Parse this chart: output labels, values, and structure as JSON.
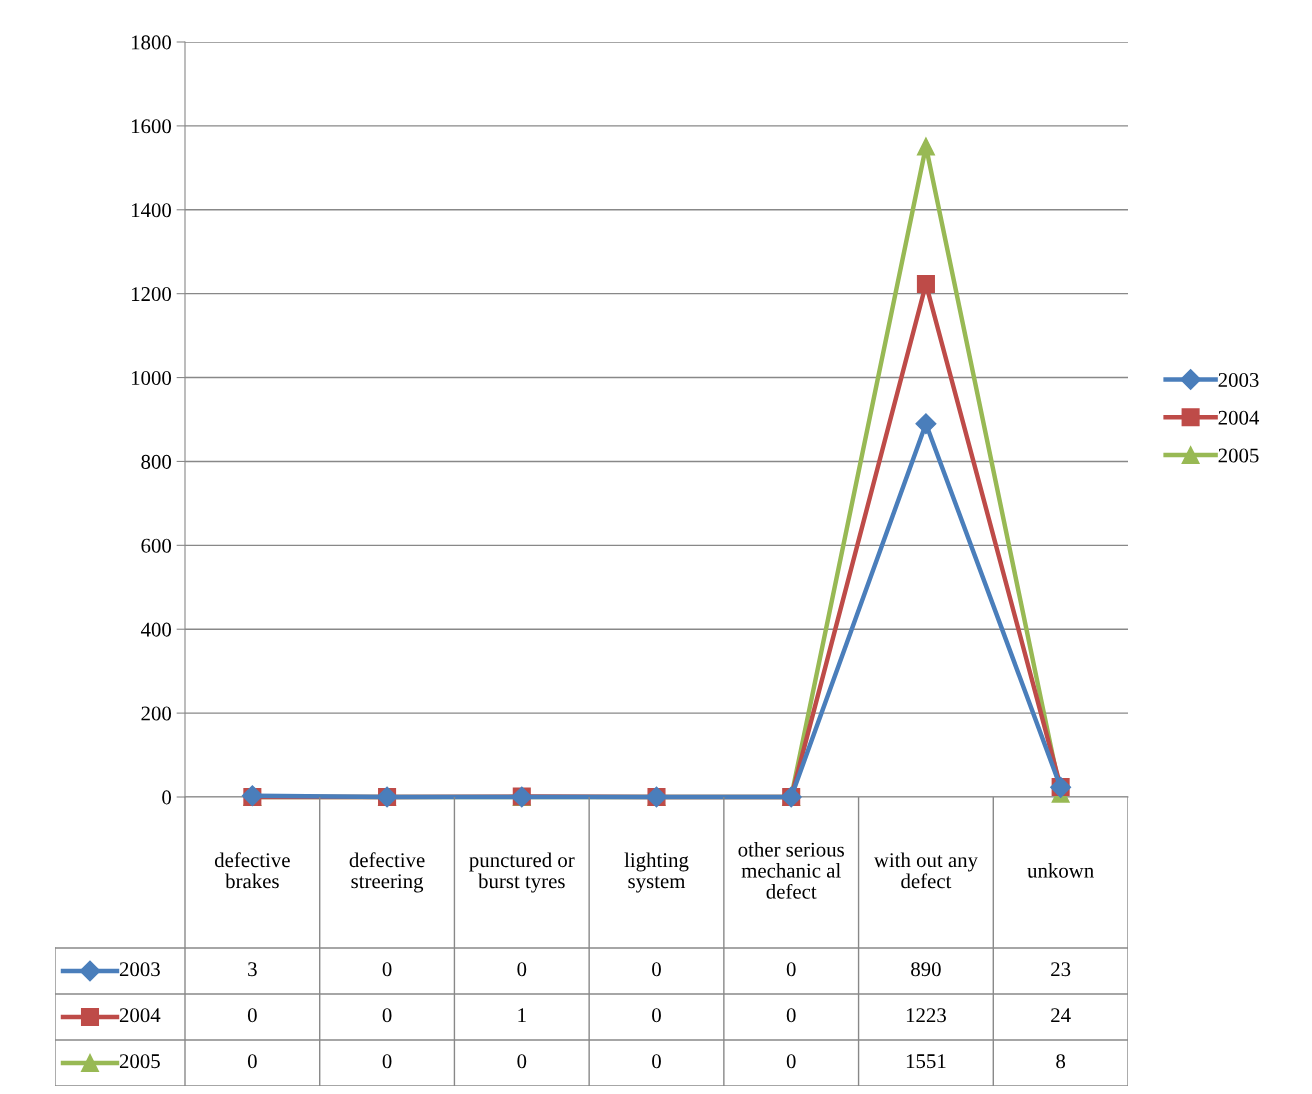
{
  "chart_data": {
    "type": "line",
    "categories": [
      "defective brakes",
      "defective streering",
      "punctured or burst tyres",
      "lighting system",
      "other serious mechanic al defect",
      "with out any defect",
      "unkown"
    ],
    "series": [
      {
        "name": "2003",
        "color": "#4a7ebb",
        "marker": "diamond",
        "values": [
          3,
          0,
          0,
          0,
          0,
          890,
          23
        ]
      },
      {
        "name": "2004",
        "color": "#be4b48",
        "marker": "square",
        "values": [
          0,
          0,
          1,
          0,
          0,
          1223,
          24
        ]
      },
      {
        "name": "2005",
        "color": "#98b954",
        "marker": "triangle",
        "values": [
          0,
          0,
          0,
          0,
          0,
          1551,
          8
        ]
      }
    ],
    "ylim": [
      0,
      1800
    ],
    "yticks": [
      0,
      200,
      400,
      600,
      800,
      1000,
      1200,
      1400,
      1600,
      1800
    ],
    "grid": "y",
    "legend": "right",
    "data_labels": true,
    "line_style": "solid"
  }
}
